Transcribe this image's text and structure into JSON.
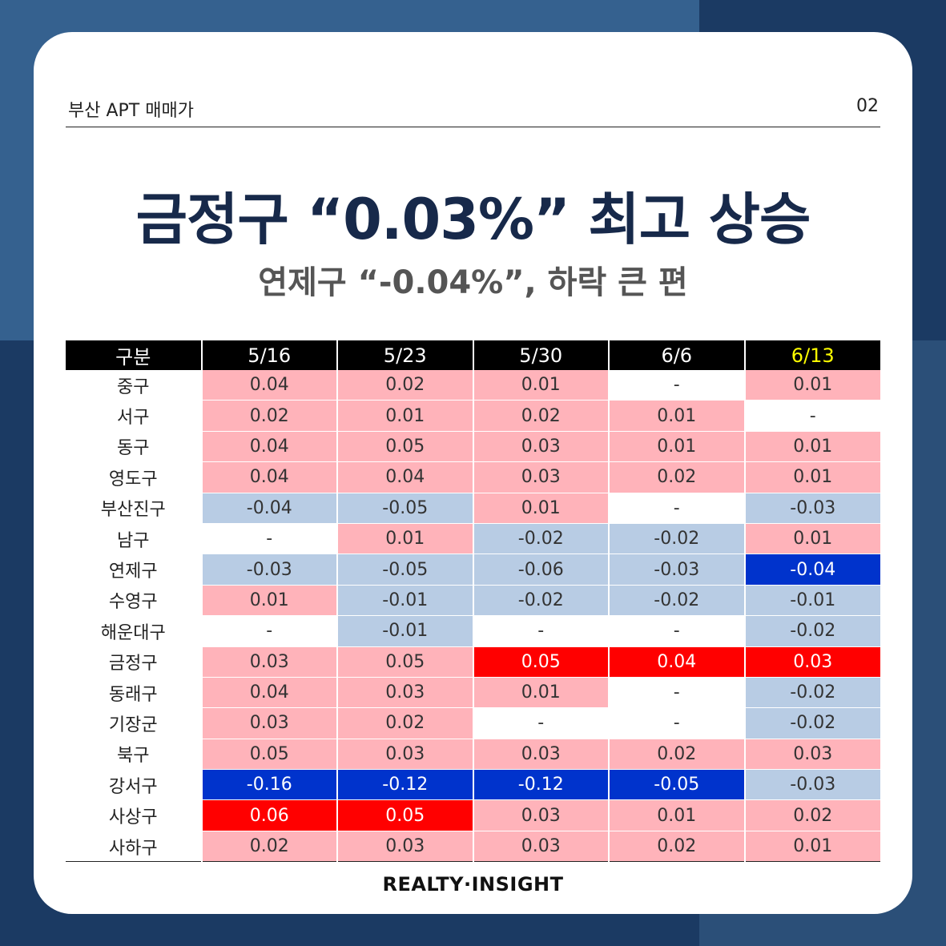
{
  "header": {
    "left": "부산 APT 매매가",
    "right": "02"
  },
  "title": "금정구 “0.03%” 최고 상승",
  "subtitle": "연제구 “-0.04%”, 하락 큰 편",
  "table": {
    "columns": [
      "구분",
      "5/16",
      "5/23",
      "5/30",
      "6/6",
      "6/13"
    ],
    "highlight_column": "6/13",
    "rows": [
      {
        "label": "중구",
        "values": [
          "0.04",
          "0.02",
          "0.01",
          "-",
          "0.01"
        ]
      },
      {
        "label": "서구",
        "values": [
          "0.02",
          "0.01",
          "0.02",
          "0.01",
          "-"
        ]
      },
      {
        "label": "동구",
        "values": [
          "0.04",
          "0.05",
          "0.03",
          "0.01",
          "0.01"
        ]
      },
      {
        "label": "영도구",
        "values": [
          "0.04",
          "0.04",
          "0.03",
          "0.02",
          "0.01"
        ]
      },
      {
        "label": "부산진구",
        "values": [
          "-0.04",
          "-0.05",
          "0.01",
          "-",
          "-0.03"
        ]
      },
      {
        "label": "남구",
        "values": [
          "-",
          "0.01",
          "-0.02",
          "-0.02",
          "0.01"
        ]
      },
      {
        "label": "연제구",
        "values": [
          "-0.03",
          "-0.05",
          "-0.06",
          "-0.03",
          "-0.04"
        ]
      },
      {
        "label": "수영구",
        "values": [
          "0.01",
          "-0.01",
          "-0.02",
          "-0.02",
          "-0.01"
        ]
      },
      {
        "label": "해운대구",
        "values": [
          "-",
          "-0.01",
          "-",
          "-",
          "-0.02"
        ]
      },
      {
        "label": "금정구",
        "values": [
          "0.03",
          "0.05",
          "0.05",
          "0.04",
          "0.03"
        ]
      },
      {
        "label": "동래구",
        "values": [
          "0.04",
          "0.03",
          "0.01",
          "-",
          "-0.02"
        ]
      },
      {
        "label": "기장군",
        "values": [
          "0.03",
          "0.02",
          "-",
          "-",
          "-0.02"
        ]
      },
      {
        "label": "북구",
        "values": [
          "0.05",
          "0.03",
          "0.03",
          "0.02",
          "0.03"
        ]
      },
      {
        "label": "강서구",
        "values": [
          "-0.16",
          "-0.12",
          "-0.12",
          "-0.05",
          "-0.03"
        ]
      },
      {
        "label": "사상구",
        "values": [
          "0.06",
          "0.05",
          "0.03",
          "0.01",
          "0.02"
        ]
      },
      {
        "label": "사하구",
        "values": [
          "0.02",
          "0.03",
          "0.03",
          "0.02",
          "0.01"
        ]
      }
    ],
    "strong_cells": {
      "연제구": {
        "4": "sneg"
      },
      "금정구": {
        "2": "spos",
        "3": "spos",
        "4": "spos"
      },
      "강서구": {
        "0": "sneg",
        "1": "sneg",
        "2": "sneg",
        "3": "sneg"
      },
      "사상구": {
        "0": "spos",
        "1": "spos"
      }
    }
  },
  "colors": {
    "positive": "#ffb3ba",
    "negative": "#b8cce4",
    "strong_positive": "#ff0000",
    "strong_negative": "#0033cc",
    "highlight_header": "#ffff00"
  },
  "footer": "REALTY·INSIGHT"
}
